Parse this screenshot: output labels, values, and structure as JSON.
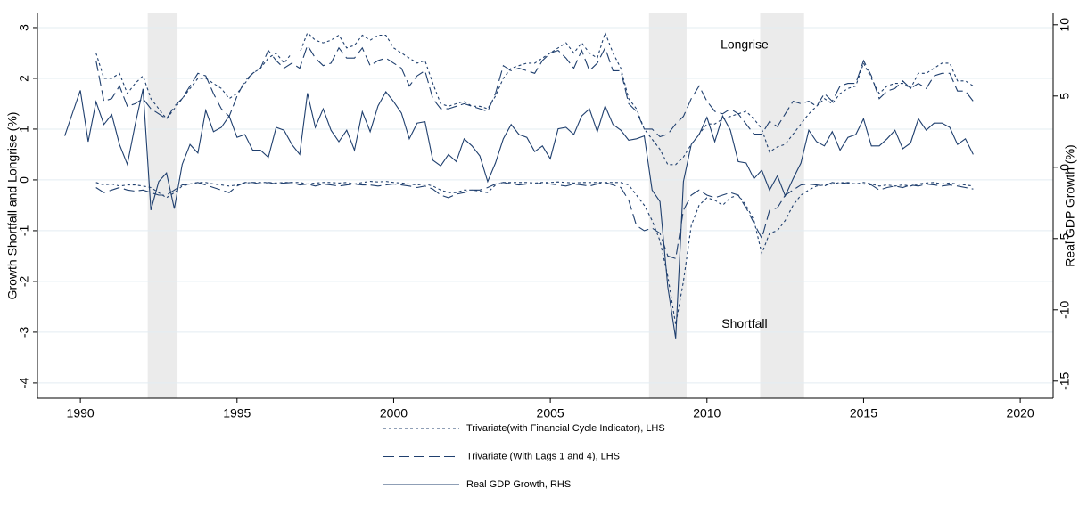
{
  "chart_data": {
    "type": "line",
    "y_label": "Growth Shortfall and Longrise (%)",
    "y2_label": "Real GDP Growth (%)",
    "annotations": [
      {
        "text": "Longrise",
        "x": 2011.2,
        "y": 2.65
      },
      {
        "text": "Shortfall",
        "x": 2011.2,
        "y": -2.85
      }
    ],
    "shaded_periods": [
      [
        1992.15,
        1993.1
      ],
      [
        2008.15,
        2009.35
      ],
      [
        2011.7,
        2013.1
      ]
    ],
    "shade_color": "#ebebeb",
    "grid": true,
    "xlim": [
      1988.63,
      2021.05
    ],
    "xticks": [
      1990,
      1995,
      2000,
      2005,
      2010,
      2015,
      2020
    ],
    "ylim": [
      -4.3,
      3.28
    ],
    "yticks": [
      -4,
      -3,
      -2,
      -1,
      0,
      1,
      2,
      3
    ],
    "y2lim": [
      -16.2,
      10.8
    ],
    "y2ticks": [
      -15,
      -10,
      -5,
      0,
      5,
      10
    ],
    "x": [
      1989.5,
      1989.75,
      1990,
      1990.25,
      1990.5,
      1990.75,
      1991,
      1991.25,
      1991.5,
      1991.75,
      1992,
      1992.25,
      1992.5,
      1992.75,
      1993,
      1993.25,
      1993.5,
      1993.75,
      1994,
      1994.25,
      1994.5,
      1994.75,
      1995,
      1995.25,
      1995.5,
      1995.75,
      1996,
      1996.25,
      1996.5,
      1996.75,
      1997,
      1997.25,
      1997.5,
      1997.75,
      1998,
      1998.25,
      1998.5,
      1998.75,
      1999,
      1999.25,
      1999.5,
      1999.75,
      2000,
      2000.25,
      2000.5,
      2000.75,
      2001,
      2001.25,
      2001.5,
      2001.75,
      2002,
      2002.25,
      2002.5,
      2002.75,
      2003,
      2003.25,
      2003.5,
      2003.75,
      2004,
      2004.25,
      2004.5,
      2004.75,
      2005,
      2005.25,
      2005.5,
      2005.75,
      2006,
      2006.25,
      2006.5,
      2006.75,
      2007,
      2007.25,
      2007.5,
      2007.75,
      2008,
      2008.25,
      2008.5,
      2008.75,
      2009,
      2009.25,
      2009.5,
      2009.75,
      2010,
      2010.25,
      2010.5,
      2010.75,
      2011,
      2011.25,
      2011.5,
      2011.75,
      2012,
      2012.25,
      2012.5,
      2012.75,
      2013,
      2013.25,
      2013.5,
      2013.75,
      2014,
      2014.25,
      2014.5,
      2014.75,
      2015,
      2015.25,
      2015.5,
      2015.75,
      2016,
      2016.25,
      2016.5,
      2016.75,
      2017,
      2017.25,
      2017.5,
      2017.75,
      2018,
      2018.25,
      2018.5
    ],
    "series": [
      {
        "name": "Trivariate(with Financial Cycle Indicator), LHS",
        "color": "#1f3f6e",
        "dash": "dotted",
        "axis": "y",
        "longrise": [
          null,
          null,
          null,
          null,
          2.5,
          2.0,
          2.0,
          2.1,
          1.7,
          1.9,
          2.05,
          1.6,
          1.4,
          1.2,
          1.4,
          1.6,
          1.8,
          2.0,
          2.0,
          1.9,
          1.8,
          1.6,
          1.7,
          1.9,
          2.1,
          2.2,
          2.4,
          2.5,
          2.3,
          2.5,
          2.5,
          2.9,
          2.75,
          2.7,
          2.75,
          2.85,
          2.6,
          2.65,
          2.85,
          2.75,
          2.85,
          2.85,
          2.6,
          2.5,
          2.4,
          2.3,
          2.35,
          1.9,
          1.5,
          1.45,
          1.5,
          1.55,
          1.45,
          1.45,
          1.4,
          1.65,
          2.0,
          2.2,
          2.25,
          2.3,
          2.3,
          2.4,
          2.5,
          2.6,
          2.7,
          2.5,
          2.7,
          2.5,
          2.4,
          2.9,
          2.5,
          2.2,
          1.6,
          1.4,
          1.0,
          0.8,
          0.6,
          0.3,
          0.3,
          0.45,
          0.7,
          0.9,
          1.1,
          1.1,
          1.2,
          1.25,
          1.3,
          1.35,
          1.2,
          1.0,
          0.55,
          0.65,
          0.7,
          0.9,
          1.1,
          1.3,
          1.45,
          1.6,
          1.5,
          1.7,
          1.8,
          1.85,
          2.3,
          2.0,
          1.7,
          1.85,
          1.9,
          1.9,
          1.8,
          2.1,
          2.1,
          2.2,
          2.3,
          2.3,
          1.95,
          1.95,
          1.85
        ],
        "shortfall": [
          null,
          null,
          null,
          null,
          -0.05,
          -0.1,
          -0.08,
          -0.12,
          -0.1,
          -0.1,
          -0.12,
          -0.15,
          -0.25,
          -0.35,
          -0.25,
          -0.12,
          -0.08,
          -0.05,
          -0.05,
          -0.08,
          -0.1,
          -0.12,
          -0.1,
          -0.06,
          -0.05,
          -0.05,
          -0.05,
          -0.06,
          -0.05,
          -0.05,
          -0.05,
          -0.08,
          -0.06,
          -0.05,
          -0.05,
          -0.06,
          -0.05,
          -0.08,
          -0.05,
          -0.03,
          -0.04,
          -0.03,
          -0.05,
          -0.06,
          -0.08,
          -0.1,
          -0.08,
          -0.12,
          -0.2,
          -0.25,
          -0.25,
          -0.2,
          -0.2,
          -0.22,
          -0.25,
          -0.1,
          -0.05,
          -0.05,
          -0.05,
          -0.05,
          -0.06,
          -0.05,
          -0.05,
          -0.04,
          -0.05,
          -0.06,
          -0.05,
          -0.05,
          -0.05,
          -0.05,
          -0.05,
          -0.05,
          -0.1,
          -0.3,
          -0.5,
          -0.8,
          -1.2,
          -1.9,
          -2.85,
          -2.0,
          -0.9,
          -0.5,
          -0.35,
          -0.4,
          -0.5,
          -0.35,
          -0.3,
          -0.5,
          -0.8,
          -1.45,
          -1.05,
          -1.0,
          -0.8,
          -0.5,
          -0.3,
          -0.2,
          -0.12,
          -0.1,
          -0.08,
          -0.05,
          -0.06,
          -0.08,
          -0.05,
          -0.08,
          -0.12,
          -0.1,
          -0.12,
          -0.1,
          -0.12,
          -0.08,
          -0.06,
          -0.05,
          -0.08,
          -0.06,
          -0.08,
          -0.1,
          -0.12
        ]
      },
      {
        "name": "Trivariate (With Lags 1 and 4), LHS",
        "color": "#1f3f6e",
        "dash": "dashed",
        "axis": "y",
        "longrise": [
          null,
          null,
          null,
          null,
          2.35,
          1.55,
          1.6,
          1.85,
          1.45,
          1.5,
          1.6,
          1.4,
          1.3,
          1.2,
          1.45,
          1.6,
          1.85,
          2.1,
          2.05,
          1.7,
          1.4,
          1.25,
          1.65,
          1.95,
          2.1,
          2.2,
          2.55,
          2.35,
          2.2,
          2.3,
          2.2,
          2.65,
          2.4,
          2.25,
          2.3,
          2.6,
          2.4,
          2.4,
          2.6,
          2.25,
          2.35,
          2.4,
          2.3,
          2.2,
          1.85,
          2.05,
          2.15,
          1.6,
          1.4,
          1.4,
          1.45,
          1.5,
          1.45,
          1.4,
          1.35,
          1.7,
          2.25,
          2.15,
          2.2,
          2.15,
          2.1,
          2.35,
          2.5,
          2.55,
          2.4,
          2.2,
          2.55,
          2.15,
          2.3,
          2.6,
          2.15,
          2.15,
          1.5,
          1.35,
          1.0,
          1.0,
          0.85,
          0.9,
          1.1,
          1.25,
          1.6,
          1.85,
          1.55,
          1.35,
          1.3,
          1.4,
          1.3,
          1.1,
          0.9,
          0.9,
          1.15,
          1.05,
          1.3,
          1.55,
          1.5,
          1.55,
          1.45,
          1.7,
          1.55,
          1.85,
          1.9,
          1.9,
          2.35,
          2.05,
          1.6,
          1.75,
          1.8,
          1.95,
          1.8,
          1.9,
          1.8,
          2.05,
          2.1,
          2.1,
          1.75,
          1.75,
          1.55
        ],
        "shortfall": [
          null,
          null,
          null,
          null,
          -0.15,
          -0.25,
          -0.2,
          -0.15,
          -0.2,
          -0.22,
          -0.2,
          -0.25,
          -0.3,
          -0.3,
          -0.2,
          -0.1,
          -0.08,
          -0.05,
          -0.1,
          -0.15,
          -0.2,
          -0.25,
          -0.12,
          -0.05,
          -0.05,
          -0.08,
          -0.05,
          -0.08,
          -0.06,
          -0.05,
          -0.1,
          -0.08,
          -0.12,
          -0.08,
          -0.1,
          -0.12,
          -0.1,
          -0.08,
          -0.1,
          -0.1,
          -0.12,
          -0.1,
          -0.08,
          -0.1,
          -0.12,
          -0.15,
          -0.12,
          -0.18,
          -0.3,
          -0.35,
          -0.28,
          -0.25,
          -0.2,
          -0.2,
          -0.15,
          -0.08,
          -0.05,
          -0.08,
          -0.1,
          -0.08,
          -0.08,
          -0.06,
          -0.08,
          -0.1,
          -0.12,
          -0.08,
          -0.1,
          -0.12,
          -0.08,
          -0.05,
          -0.1,
          -0.15,
          -0.4,
          -0.9,
          -1.0,
          -0.95,
          -1.05,
          -1.5,
          -1.55,
          -0.6,
          -0.3,
          -0.2,
          -0.3,
          -0.35,
          -0.3,
          -0.25,
          -0.3,
          -0.55,
          -0.85,
          -1.15,
          -0.6,
          -0.55,
          -0.3,
          -0.2,
          -0.1,
          -0.08,
          -0.1,
          -0.12,
          -0.05,
          -0.08,
          -0.05,
          -0.08,
          -0.08,
          -0.1,
          -0.2,
          -0.15,
          -0.12,
          -0.15,
          -0.1,
          -0.12,
          -0.08,
          -0.1,
          -0.12,
          -0.1,
          -0.12,
          -0.15,
          -0.18
        ]
      },
      {
        "name": "Real GDP Growth, RHS",
        "color": "#1f3f6e",
        "dash": "solid",
        "axis": "y2",
        "values": [
          2.2,
          3.8,
          5.4,
          1.8,
          4.6,
          3.0,
          3.7,
          1.6,
          0.2,
          3.0,
          5.5,
          -3.0,
          -1.0,
          -0.4,
          -2.9,
          0.2,
          1.6,
          1.0,
          4.0,
          2.5,
          2.8,
          3.6,
          2.1,
          2.3,
          1.2,
          1.2,
          0.7,
          2.8,
          2.6,
          1.6,
          0.9,
          5.2,
          2.8,
          4.1,
          2.6,
          1.8,
          2.6,
          1.2,
          3.9,
          2.5,
          4.3,
          5.3,
          4.6,
          3.8,
          2.0,
          3.1,
          3.2,
          0.5,
          0.1,
          0.9,
          0.4,
          2.0,
          1.5,
          0.8,
          -1.0,
          0.3,
          2.0,
          3.0,
          2.3,
          2.1,
          1.1,
          1.5,
          0.6,
          2.7,
          2.8,
          2.3,
          3.6,
          4.1,
          2.5,
          4.3,
          3.0,
          2.6,
          1.9,
          2.0,
          2.2,
          -1.6,
          -2.4,
          -8.4,
          -12.0,
          -1.0,
          1.6,
          2.3,
          3.5,
          1.8,
          3.6,
          2.6,
          0.4,
          0.3,
          -0.8,
          -0.2,
          -1.6,
          -0.6,
          -2.0,
          -0.8,
          0.3,
          2.6,
          1.8,
          1.5,
          2.5,
          1.2,
          2.1,
          2.3,
          3.4,
          1.5,
          1.5,
          2.0,
          2.6,
          1.3,
          1.7,
          3.4,
          2.6,
          3.1,
          3.1,
          2.8,
          1.6,
          2.0,
          0.9
        ]
      }
    ]
  }
}
